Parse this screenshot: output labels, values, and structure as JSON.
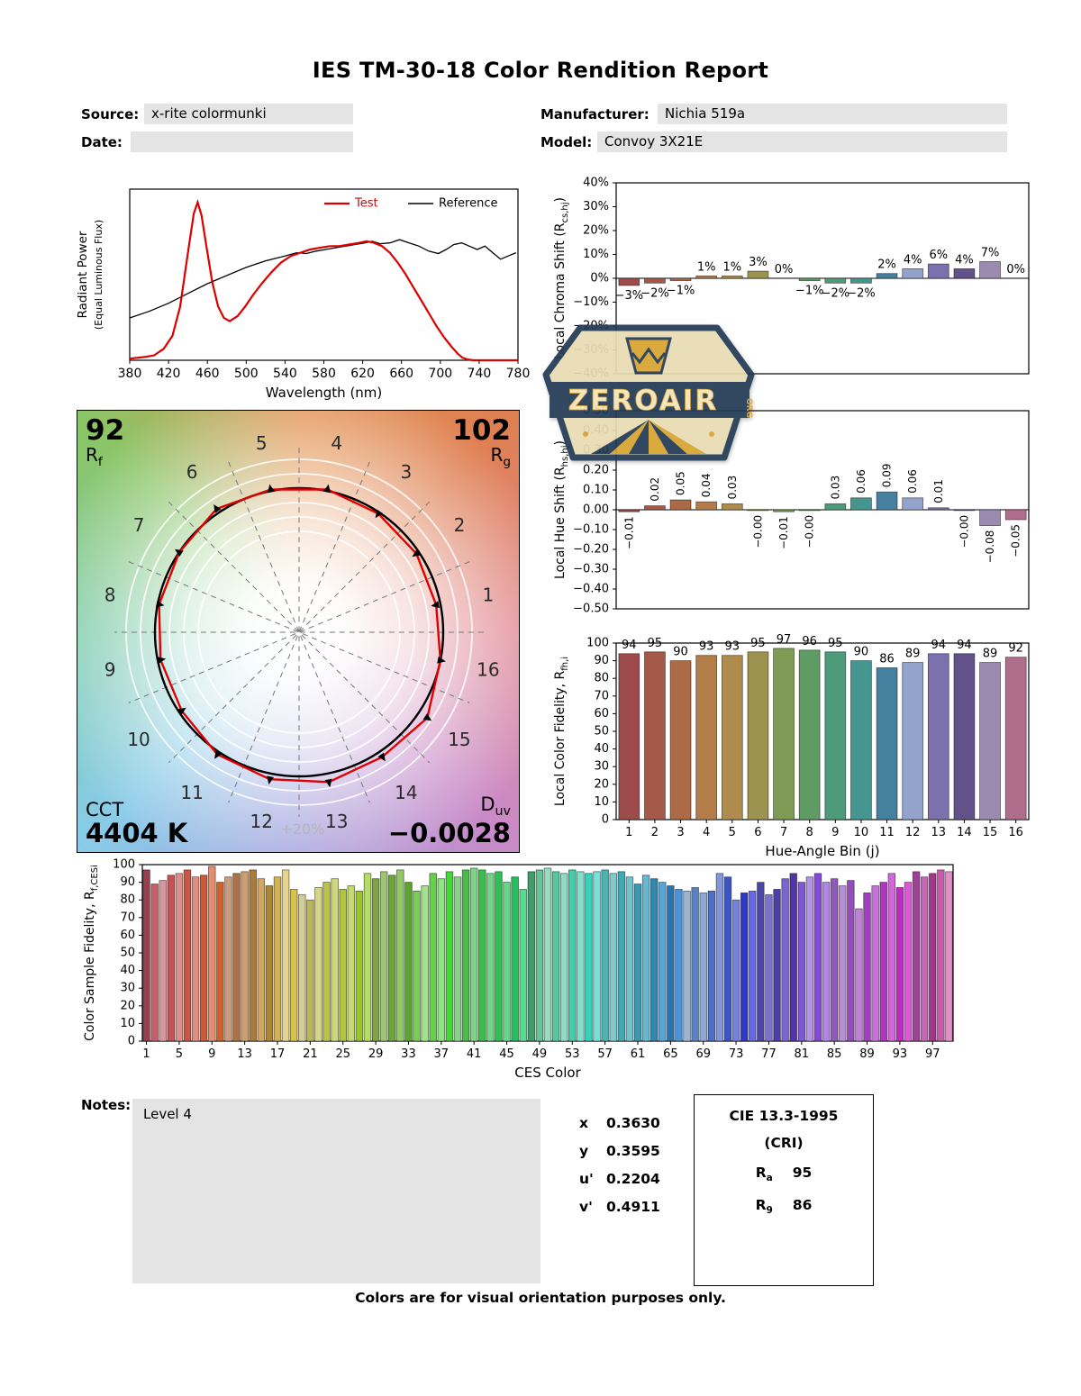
{
  "title": "IES TM-30-18 Color Rendition Report",
  "header": {
    "source_label": "Source:",
    "source_value": "x-rite colormunki",
    "manufacturer_label": "Manufacturer:",
    "manufacturer_value": "Nichia 519a",
    "date_label": "Date:",
    "date_value": "",
    "model_label": "Model:",
    "model_value": "Convoy 3X21E"
  },
  "cvg": {
    "rf_value": "92",
    "rf_main": "R",
    "rf_sub": "f",
    "rg_value": "102",
    "rg_main": "R",
    "rg_sub": "g",
    "cct_label": "CCT",
    "cct_value": "4404 K",
    "duv_main": "D",
    "duv_sub": "uv",
    "duv_value": "−0.0028",
    "plus20_label": "+20%",
    "bins": [
      "1",
      "2",
      "3",
      "4",
      "5",
      "6",
      "7",
      "8",
      "9",
      "10",
      "11",
      "12",
      "13",
      "14",
      "15",
      "16"
    ]
  },
  "notes": {
    "label": "Notes:",
    "value": "Level 4"
  },
  "coords": {
    "rows": [
      {
        "label": "x",
        "value": "0.3630"
      },
      {
        "label": "y",
        "value": "0.3595"
      },
      {
        "label": "u'",
        "value": "0.2204"
      },
      {
        "label": "v'",
        "value": "0.4911"
      }
    ]
  },
  "cri": {
    "title": "CIE 13.3-1995",
    "subtitle": "(CRI)",
    "rows": [
      {
        "main": "R",
        "sub": "a",
        "value": "95"
      },
      {
        "main": "R",
        "sub": "9",
        "value": "86"
      }
    ]
  },
  "footer": "Colors are for visual orientation purposes only.",
  "watermark": {
    "name": "ZEROAIR",
    "org": "ORG"
  },
  "colors": {
    "test": "#dd0000",
    "reference": "#000000",
    "field_bg": "#e4e4e4",
    "hue_bins": [
      "#9e4b4b",
      "#a55a49",
      "#ad6a46",
      "#b37c49",
      "#af8c4e",
      "#9d9350",
      "#7f9a55",
      "#5f9c63",
      "#4e9b7c",
      "#459690",
      "#45809f",
      "#93a3cc",
      "#7b71ad",
      "#63528a",
      "#9b8bb0",
      "#b06e8d"
    ]
  },
  "chart_data": [
    {
      "id": "spd",
      "type": "line",
      "xlabel": "Wavelength (nm)",
      "ylabel_line1": "Radiant Power",
      "ylabel_line2": "(Equal Luminous Flux)",
      "xlim": [
        380,
        780
      ],
      "ylim": [
        0,
        1.05
      ],
      "xticks": [
        380,
        420,
        460,
        500,
        540,
        580,
        620,
        660,
        700,
        740,
        780
      ],
      "legend": [
        {
          "label": "Test",
          "color": "#dd0000"
        },
        {
          "label": "Reference",
          "color": "#000000"
        }
      ],
      "series": [
        {
          "name": "Test",
          "color": "#dd0000",
          "points": [
            [
              380,
              0.01
            ],
            [
              395,
              0.02
            ],
            [
              405,
              0.03
            ],
            [
              415,
              0.07
            ],
            [
              424,
              0.15
            ],
            [
              432,
              0.33
            ],
            [
              440,
              0.66
            ],
            [
              446,
              0.9
            ],
            [
              450,
              0.97
            ],
            [
              454,
              0.89
            ],
            [
              459,
              0.7
            ],
            [
              465,
              0.48
            ],
            [
              471,
              0.33
            ],
            [
              477,
              0.26
            ],
            [
              483,
              0.24
            ],
            [
              491,
              0.27
            ],
            [
              499,
              0.33
            ],
            [
              507,
              0.4
            ],
            [
              516,
              0.47
            ],
            [
              526,
              0.54
            ],
            [
              536,
              0.6
            ],
            [
              546,
              0.64
            ],
            [
              556,
              0.66
            ],
            [
              566,
              0.68
            ],
            [
              576,
              0.69
            ],
            [
              586,
              0.7
            ],
            [
              596,
              0.7
            ],
            [
              606,
              0.71
            ],
            [
              616,
              0.72
            ],
            [
              624,
              0.73
            ],
            [
              632,
              0.72
            ],
            [
              640,
              0.7
            ],
            [
              648,
              0.66
            ],
            [
              656,
              0.6
            ],
            [
              664,
              0.53
            ],
            [
              672,
              0.45
            ],
            [
              680,
              0.37
            ],
            [
              688,
              0.29
            ],
            [
              696,
              0.21
            ],
            [
              704,
              0.14
            ],
            [
              712,
              0.08
            ],
            [
              718,
              0.04
            ],
            [
              723,
              0.015
            ],
            [
              728,
              0.005
            ],
            [
              734,
              0
            ],
            [
              780,
              0
            ]
          ]
        },
        {
          "name": "Reference",
          "color": "#000000",
          "points": [
            [
              380,
              0.26
            ],
            [
              400,
              0.3
            ],
            [
              420,
              0.35
            ],
            [
              440,
              0.41
            ],
            [
              460,
              0.47
            ],
            [
              480,
              0.52
            ],
            [
              500,
              0.57
            ],
            [
              520,
              0.61
            ],
            [
              540,
              0.64
            ],
            [
              552,
              0.66
            ],
            [
              562,
              0.655
            ],
            [
              572,
              0.67
            ],
            [
              582,
              0.68
            ],
            [
              592,
              0.69
            ],
            [
              602,
              0.7
            ],
            [
              612,
              0.71
            ],
            [
              622,
              0.72
            ],
            [
              630,
              0.73
            ],
            [
              638,
              0.715
            ],
            [
              648,
              0.72
            ],
            [
              658,
              0.74
            ],
            [
              668,
              0.72
            ],
            [
              678,
              0.7
            ],
            [
              688,
              0.67
            ],
            [
              698,
              0.655
            ],
            [
              706,
              0.68
            ],
            [
              714,
              0.71
            ],
            [
              722,
              0.72
            ],
            [
              730,
              0.7
            ],
            [
              738,
              0.68
            ],
            [
              746,
              0.7
            ],
            [
              754,
              0.66
            ],
            [
              762,
              0.62
            ],
            [
              770,
              0.64
            ],
            [
              778,
              0.66
            ]
          ]
        }
      ]
    },
    {
      "id": "local_chroma_shift",
      "type": "bar",
      "ylabel_main": "Local Chroma Shift (R",
      "ylabel_sub": "cs,hj",
      "ylabel_end": ")",
      "ylim": [
        -40,
        40
      ],
      "ytick_values": [
        40,
        30,
        20,
        10,
        0,
        -10,
        -20,
        -30,
        -40
      ],
      "ytick_labels": [
        "40%",
        "30%",
        "20%",
        "10%",
        "0%",
        "−10%",
        "−20%",
        "−30%",
        "−40%"
      ],
      "categories": [
        1,
        2,
        3,
        4,
        5,
        6,
        7,
        8,
        9,
        10,
        11,
        12,
        13,
        14,
        15,
        16
      ],
      "values": [
        -3,
        -2,
        -1,
        1,
        1,
        3,
        0,
        -1,
        -2,
        -2,
        2,
        4,
        6,
        4,
        7,
        0
      ],
      "labels": [
        "−3%",
        "−2%",
        "−1%",
        "1%",
        "1%",
        "3%",
        "0%",
        "−1%",
        "−2%",
        "−2%",
        "2%",
        "4%",
        "6%",
        "4%",
        "7%",
        "0%"
      ]
    },
    {
      "id": "local_hue_shift",
      "type": "bar",
      "ylabel_main": "Local Hue Shift (R",
      "ylabel_sub": "hs,hj",
      "ylabel_end": ")",
      "ylim": [
        -0.5,
        0.5
      ],
      "ytick_values": [
        0.5,
        0.4,
        0.3,
        0.2,
        0.1,
        0,
        -0.1,
        -0.2,
        -0.3,
        -0.4,
        -0.5
      ],
      "ytick_labels": [
        "0.50",
        "0.40",
        "0.30",
        "0.20",
        "0.10",
        "0.00",
        "−0.10",
        "−0.20",
        "−0.30",
        "−0.40",
        "−0.50"
      ],
      "categories": [
        1,
        2,
        3,
        4,
        5,
        6,
        7,
        8,
        9,
        10,
        11,
        12,
        13,
        14,
        15,
        16
      ],
      "values": [
        -0.01,
        0.02,
        0.05,
        0.04,
        0.03,
        -0.004,
        -0.01,
        -0.004,
        0.03,
        0.06,
        0.09,
        0.06,
        0.01,
        -0.004,
        -0.08,
        -0.05
      ],
      "labels": [
        "−0.01",
        "0.02",
        "0.05",
        "0.04",
        "0.03",
        "−0.00",
        "−0.01",
        "−0.00",
        "0.03",
        "0.06",
        "0.09",
        "0.06",
        "0.01",
        "−0.00",
        "−0.08",
        "−0.05"
      ],
      "label_rotation": -90
    },
    {
      "id": "local_color_fidelity",
      "type": "bar",
      "xlabel": "Hue-Angle Bin (j)",
      "ylabel_main": "Local Color Fidelity, R",
      "ylabel_sub": "fh,i",
      "ylabel_end": "",
      "ylim": [
        0,
        100
      ],
      "ytick_values": [
        100,
        90,
        80,
        70,
        60,
        50,
        40,
        30,
        20,
        10,
        0
      ],
      "ytick_labels": [
        "100",
        "90",
        "80",
        "70",
        "60",
        "50",
        "40",
        "30",
        "20",
        "10",
        "0"
      ],
      "categories": [
        1,
        2,
        3,
        4,
        5,
        6,
        7,
        8,
        9,
        10,
        11,
        12,
        13,
        14,
        15,
        16
      ],
      "xtick_labels": [
        "1",
        "2",
        "3",
        "4",
        "5",
        "6",
        "7",
        "8",
        "9",
        "10",
        "11",
        "12",
        "13",
        "14",
        "15",
        "16"
      ],
      "values": [
        94,
        95,
        90,
        93,
        93,
        95,
        97,
        96,
        95,
        90,
        86,
        89,
        94,
        94,
        89,
        92
      ],
      "labels": [
        "94",
        "95",
        "90",
        "93",
        "93",
        "95",
        "97",
        "96",
        "95",
        "90",
        "86",
        "89",
        "94",
        "94",
        "89",
        "92"
      ]
    },
    {
      "id": "ces_fidelity",
      "type": "bar",
      "xlabel": "CES Color",
      "ylabel_main": "Color Sample Fidelity, R",
      "ylabel_sub": "f,CESi",
      "ylabel_end": "",
      "ylim": [
        0,
        100
      ],
      "ytick_values": [
        100,
        90,
        80,
        70,
        60,
        50,
        40,
        30,
        20,
        10,
        0
      ],
      "ytick_labels": [
        "100",
        "90",
        "80",
        "70",
        "60",
        "50",
        "40",
        "30",
        "20",
        "10",
        "0"
      ],
      "xtick_values": [
        1,
        5,
        9,
        13,
        17,
        21,
        25,
        29,
        33,
        37,
        41,
        45,
        49,
        53,
        57,
        61,
        65,
        69,
        73,
        77,
        81,
        85,
        89,
        93,
        97
      ],
      "values": [
        97,
        89,
        91,
        94,
        95,
        97,
        93,
        94,
        99,
        90,
        93,
        95,
        96,
        97,
        92,
        88,
        93,
        97,
        86,
        83,
        80,
        87,
        90,
        92,
        86,
        88,
        85,
        95,
        92,
        96,
        94,
        97,
        90,
        85,
        88,
        95,
        92,
        96,
        93,
        97,
        98,
        97,
        95,
        96,
        90,
        93,
        86,
        96,
        97,
        98,
        96,
        95,
        97,
        96,
        95,
        96,
        97,
        95,
        96,
        93,
        89,
        94,
        92,
        90,
        88,
        86,
        85,
        87,
        84,
        85,
        95,
        93,
        80,
        84,
        85,
        90,
        83,
        86,
        92,
        95,
        90,
        93,
        95,
        90,
        92,
        88,
        91,
        75,
        84,
        88,
        90,
        95,
        87,
        90,
        96,
        93,
        95,
        97,
        96
      ]
    },
    {
      "id": "color_vector",
      "type": "polar",
      "rf": 92,
      "rg": 102,
      "cct_k": 4404,
      "duv": -0.0028,
      "chroma_shift_pct": [
        -3,
        -2,
        -1,
        1,
        1,
        3,
        0,
        -1,
        -2,
        -2,
        2,
        4,
        6,
        4,
        7,
        0
      ]
    }
  ]
}
